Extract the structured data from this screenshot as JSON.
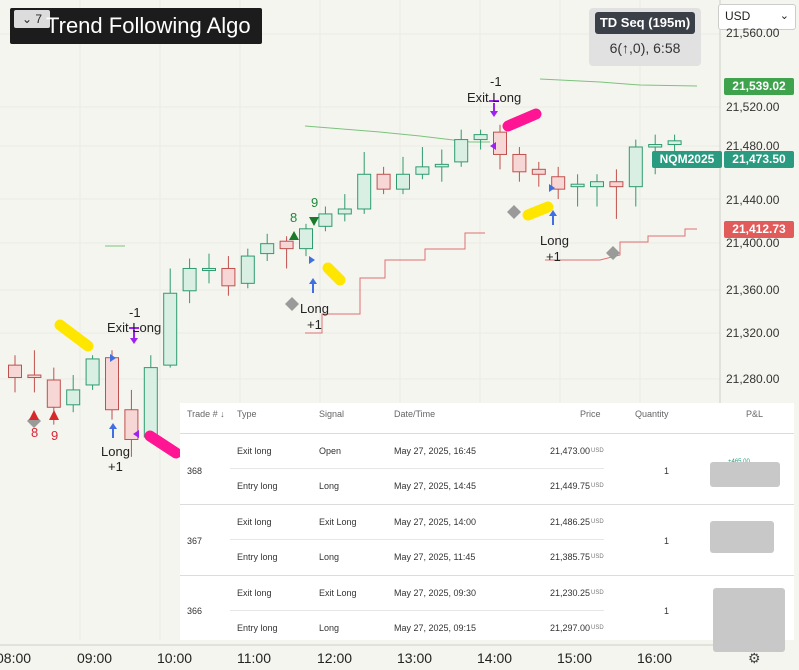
{
  "header": {
    "title_chevron": "⌄ 7",
    "title": "Trend Following Algo",
    "td_title": "TD Seq (195m)",
    "td_sub": "6(↑,0), 6:58",
    "currency": "USD",
    "currency_chevron": "⌄"
  },
  "price_axis": {
    "labels": [
      "21,560.00",
      "21,520.00",
      "21,480.00",
      "21,440.00",
      "21,400.00",
      "21,360.00",
      "21,320.00",
      "21,280.00"
    ],
    "tags": [
      {
        "label": "21,539.02",
        "color": "#3fa34d"
      },
      {
        "label": "21,473.50",
        "color": "#2a9a80"
      },
      {
        "label": "21,412.73",
        "color": "#e25b5b"
      }
    ],
    "symbol": "NQM2025"
  },
  "time_axis": [
    "08:00",
    "09:00",
    "10:00",
    "11:00",
    "12:00",
    "13:00",
    "14:00",
    "15:00",
    "16:00"
  ],
  "annotations": {
    "exit_long": "Exit Long",
    "minus_one": "-1",
    "long": "Long",
    "plus_one": "+1",
    "count_8": "8",
    "count_9": "9",
    "red_9": "9",
    "red_8": "8"
  },
  "chart_data": {
    "type": "candlestick",
    "symbol": "NQM2025",
    "timeframe_indicator": "TD Seq (195m)",
    "x_ticks": [
      "08:00",
      "09:00",
      "10:00",
      "11:00",
      "12:00",
      "13:00",
      "14:00",
      "15:00",
      "16:00"
    ],
    "y_range": [
      21240,
      21580
    ],
    "candles": [
      {
        "o": 21292,
        "h": 21300,
        "l": 21270,
        "c": 21282
      },
      {
        "o": 21284,
        "h": 21304,
        "l": 21270,
        "c": 21282
      },
      {
        "o": 21280,
        "h": 21290,
        "l": 21244,
        "c": 21258
      },
      {
        "o": 21260,
        "h": 21284,
        "l": 21254,
        "c": 21272
      },
      {
        "o": 21276,
        "h": 21300,
        "l": 21272,
        "c": 21297
      },
      {
        "o": 21298,
        "h": 21304,
        "l": 21248,
        "c": 21256
      },
      {
        "o": 21256,
        "h": 21272,
        "l": 21218,
        "c": 21232
      },
      {
        "o": 21234,
        "h": 21300,
        "l": 21230,
        "c": 21290
      },
      {
        "o": 21292,
        "h": 21370,
        "l": 21290,
        "c": 21350
      },
      {
        "o": 21352,
        "h": 21378,
        "l": 21342,
        "c": 21370
      },
      {
        "o": 21370,
        "h": 21382,
        "l": 21358,
        "c": 21370
      },
      {
        "o": 21370,
        "h": 21380,
        "l": 21348,
        "c": 21356
      },
      {
        "o": 21358,
        "h": 21386,
        "l": 21354,
        "c": 21380
      },
      {
        "o": 21382,
        "h": 21398,
        "l": 21376,
        "c": 21390
      },
      {
        "o": 21392,
        "h": 21396,
        "l": 21370,
        "c": 21386
      },
      {
        "o": 21386,
        "h": 21406,
        "l": 21380,
        "c": 21402
      },
      {
        "o": 21404,
        "h": 21420,
        "l": 21400,
        "c": 21414
      },
      {
        "o": 21414,
        "h": 21430,
        "l": 21408,
        "c": 21418
      },
      {
        "o": 21418,
        "h": 21464,
        "l": 21414,
        "c": 21446
      },
      {
        "o": 21446,
        "h": 21452,
        "l": 21430,
        "c": 21434
      },
      {
        "o": 21434,
        "h": 21460,
        "l": 21430,
        "c": 21446
      },
      {
        "o": 21446,
        "h": 21468,
        "l": 21442,
        "c": 21452
      },
      {
        "o": 21452,
        "h": 21466,
        "l": 21440,
        "c": 21454
      },
      {
        "o": 21456,
        "h": 21482,
        "l": 21452,
        "c": 21474
      },
      {
        "o": 21474,
        "h": 21482,
        "l": 21466,
        "c": 21478
      },
      {
        "o": 21480,
        "h": 21486,
        "l": 21450,
        "c": 21462
      },
      {
        "o": 21462,
        "h": 21468,
        "l": 21440,
        "c": 21448
      },
      {
        "o": 21450,
        "h": 21456,
        "l": 21436,
        "c": 21446
      },
      {
        "o": 21444,
        "h": 21452,
        "l": 21426,
        "c": 21434
      },
      {
        "o": 21436,
        "h": 21446,
        "l": 21420,
        "c": 21438
      },
      {
        "o": 21436,
        "h": 21446,
        "l": 21420,
        "c": 21440
      },
      {
        "o": 21440,
        "h": 21450,
        "l": 21410,
        "c": 21436
      },
      {
        "o": 21436,
        "h": 21474,
        "l": 21420,
        "c": 21468
      },
      {
        "o": 21468,
        "h": 21478,
        "l": 21446,
        "c": 21470
      },
      {
        "o": 21470,
        "h": 21478,
        "l": 21462,
        "c": 21473
      }
    ],
    "trades_marked": [
      {
        "label": "Long",
        "qty": "+1"
      },
      {
        "label": "Exit Long",
        "qty": "-1"
      },
      {
        "label": "Long",
        "qty": "+1"
      },
      {
        "label": "Exit Long",
        "qty": "-1"
      },
      {
        "label": "Long",
        "qty": "+1"
      }
    ],
    "reference_prices": [
      21539.02,
      21473.5,
      21412.73
    ]
  },
  "trades_panel": {
    "headers": [
      "Trade # ↓",
      "Type",
      "Signal",
      "Date/Time",
      "Price",
      "Quantity",
      "P&L"
    ],
    "trades": [
      {
        "id": "368",
        "qty": "1",
        "pnl_partial": "+465.00",
        "rows": [
          {
            "type": "Exit long",
            "signal": "Open",
            "datetime": "May 27, 2025, 16:45",
            "price": "21,473.00",
            "unit": "USD"
          },
          {
            "type": "Entry long",
            "signal": "Long",
            "datetime": "May 27, 2025, 14:45",
            "price": "21,449.75",
            "unit": "USD"
          }
        ]
      },
      {
        "id": "367",
        "qty": "1",
        "rows": [
          {
            "type": "Exit long",
            "signal": "Exit Long",
            "datetime": "May 27, 2025, 14:00",
            "price": "21,486.25",
            "unit": "USD"
          },
          {
            "type": "Entry long",
            "signal": "Long",
            "datetime": "May 27, 2025, 11:45",
            "price": "21,385.75",
            "unit": "USD"
          }
        ]
      },
      {
        "id": "366",
        "qty": "1",
        "rows": [
          {
            "type": "Exit long",
            "signal": "Exit Long",
            "datetime": "May 27, 2025, 09:30",
            "price": "21,230.25",
            "unit": "USD"
          },
          {
            "type": "Entry long",
            "signal": "Long",
            "datetime": "May 27, 2025, 09:15",
            "price": "21,297.00",
            "unit": "USD"
          }
        ]
      }
    ]
  },
  "colors": {
    "up": "#d9efe3",
    "up_border": "#2e9b6e",
    "down": "#f7d6d6",
    "down_border": "#c0504d",
    "highlight_pink": "#ff1493",
    "highlight_yellow": "#ffe600",
    "arrow_blue": "#3f6fe0",
    "arrow_purple": "#a020f0"
  }
}
